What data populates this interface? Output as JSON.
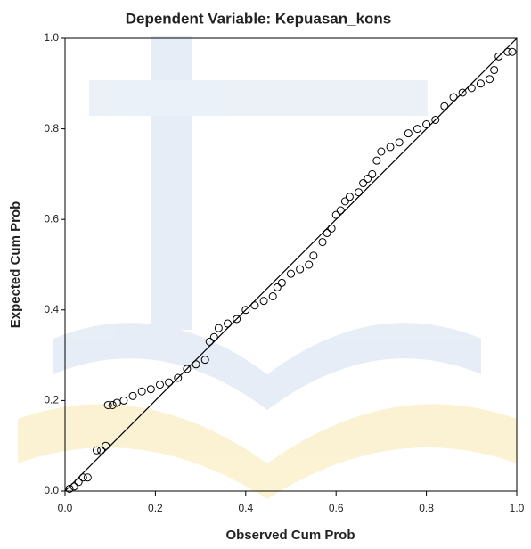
{
  "chart_data": {
    "type": "scatter",
    "title": "Dependent Variable: Kepuasan_kons",
    "x_label": "Observed Cum Prob",
    "y_label": "Expected Cum Prob",
    "xlim": [
      0,
      1
    ],
    "ylim": [
      0,
      1
    ],
    "xticks": [
      {
        "value": 0,
        "label": "0.0"
      },
      0.2,
      0.4,
      0.6,
      0.8,
      {
        "value": 1,
        "label": "1.0"
      }
    ],
    "yticks": [
      {
        "value": 0,
        "label": "0.0"
      },
      0.2,
      0.4,
      0.6,
      0.8,
      {
        "value": 1,
        "label": "1.0"
      }
    ],
    "grid": false,
    "color": "#000000",
    "reference_line": true,
    "x": [
      0.01,
      0.02,
      0.03,
      0.04,
      0.05,
      0.07,
      0.08,
      0.09,
      0.095,
      0.105,
      0.115,
      0.13,
      0.15,
      0.17,
      0.19,
      0.21,
      0.23,
      0.25,
      0.27,
      0.29,
      0.31,
      0.32,
      0.33,
      0.34,
      0.36,
      0.38,
      0.4,
      0.42,
      0.44,
      0.46,
      0.47,
      0.48,
      0.5,
      0.52,
      0.54,
      0.55,
      0.57,
      0.58,
      0.59,
      0.6,
      0.61,
      0.62,
      0.63,
      0.65,
      0.66,
      0.67,
      0.68,
      0.69,
      0.7,
      0.72,
      0.74,
      0.76,
      0.78,
      0.8,
      0.82,
      0.84,
      0.86,
      0.88,
      0.9,
      0.92,
      0.94,
      0.95,
      0.96,
      0.98,
      0.99
    ],
    "values": [
      0.005,
      0.01,
      0.02,
      0.03,
      0.03,
      0.09,
      0.09,
      0.1,
      0.19,
      0.19,
      0.195,
      0.2,
      0.21,
      0.22,
      0.225,
      0.235,
      0.24,
      0.25,
      0.27,
      0.28,
      0.29,
      0.33,
      0.34,
      0.36,
      0.37,
      0.38,
      0.4,
      0.41,
      0.42,
      0.43,
      0.45,
      0.46,
      0.48,
      0.49,
      0.5,
      0.52,
      0.55,
      0.57,
      0.58,
      0.61,
      0.62,
      0.64,
      0.65,
      0.66,
      0.68,
      0.69,
      0.7,
      0.73,
      0.75,
      0.76,
      0.77,
      0.79,
      0.8,
      0.81,
      0.82,
      0.85,
      0.87,
      0.88,
      0.89,
      0.9,
      0.91,
      0.93,
      0.96,
      0.97,
      0.97
    ]
  }
}
